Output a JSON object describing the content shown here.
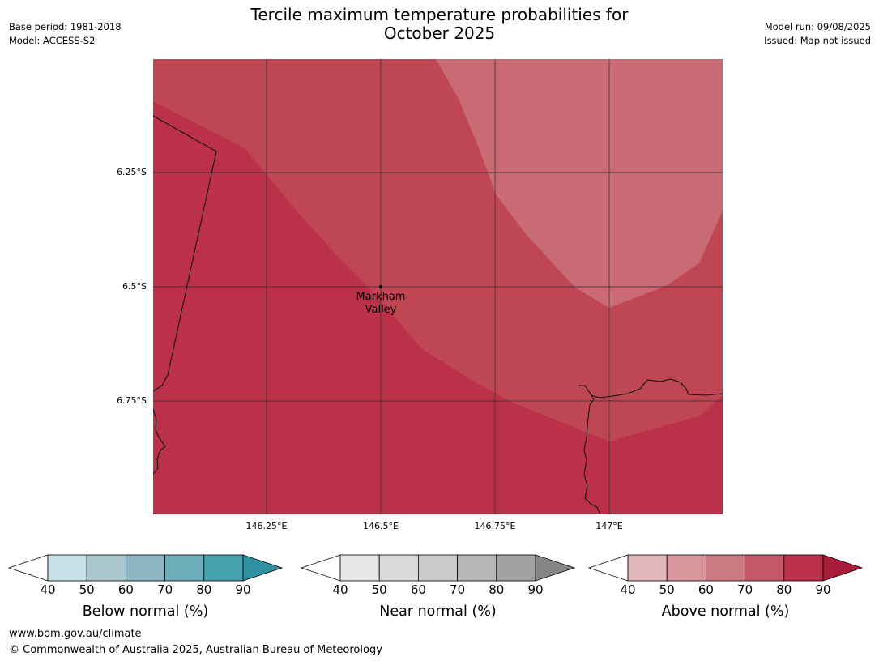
{
  "header": {
    "title_line1": "Tercile maximum temperature probabilities for",
    "title_line2": "October 2025",
    "base_period": "Base period: 1981-2018",
    "model": "Model: ACCESS-S2",
    "model_run": "Model run: 09/08/2025",
    "issued": "Issued: Map not issued"
  },
  "map": {
    "latitude_labels": [
      "6.25°S",
      "6.5°S",
      "6.75°S"
    ],
    "longitude_labels": [
      "146.25°E",
      "146.5°E",
      "146.75°E",
      "147°E"
    ],
    "place": {
      "name_line1": "Markham",
      "name_line2": "Valley"
    },
    "colors": {
      "above_90": "#bb3149",
      "above_80": "#bf4754",
      "above_70": "#c96b75",
      "coast": "#111111",
      "grid": "#333333"
    }
  },
  "legends": [
    {
      "name": "Below normal (%)",
      "ticks": [
        "40",
        "50",
        "60",
        "70",
        "80",
        "90"
      ],
      "colors": [
        "#c9e1e6",
        "#a9c7cd",
        "#8ab5c1",
        "#6eadba",
        "#47a1af",
        "#2e91a2"
      ]
    },
    {
      "name": "Near normal (%)",
      "ticks": [
        "40",
        "50",
        "60",
        "70",
        "80",
        "90"
      ],
      "colors": [
        "#e6e6e6",
        "#d9d9d9",
        "#cacaca",
        "#b6b6b6",
        "#a1a1a1",
        "#858585"
      ]
    },
    {
      "name": "Above normal (%)",
      "ticks": [
        "40",
        "50",
        "60",
        "70",
        "80",
        "90"
      ],
      "colors": [
        "#e2b5bb",
        "#d7959d",
        "#cc7a82",
        "#c45a67",
        "#bb3149",
        "#a91c3a"
      ]
    }
  ],
  "footer": {
    "url": "www.bom.gov.au/climate",
    "copyright": "© Commonwealth of Australia 2025, Australian Bureau of Meteorology"
  }
}
